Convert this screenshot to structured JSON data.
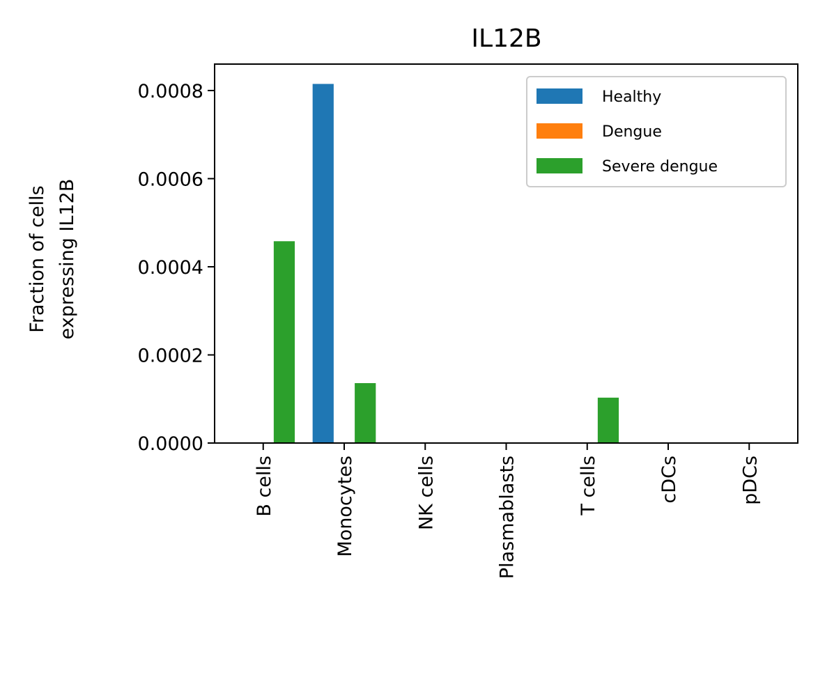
{
  "chart_data": {
    "type": "bar",
    "title": "IL12B",
    "ylabel_lines": [
      "Fraction of cells",
      "expressing IL12B"
    ],
    "xlabel": "",
    "categories": [
      "B cells",
      "Monocytes",
      "NK cells",
      "Plasmablasts",
      "T cells",
      "cDCs",
      "pDCs"
    ],
    "series": [
      {
        "name": "Healthy",
        "color": "#1f77b4",
        "values": [
          0,
          0.000815,
          0,
          0,
          0,
          0,
          0
        ]
      },
      {
        "name": "Dengue",
        "color": "#ff7f0e",
        "values": [
          0,
          0,
          0,
          0,
          0,
          0,
          0
        ]
      },
      {
        "name": "Severe dengue",
        "color": "#2ca02c",
        "values": [
          0.000458,
          0.000136,
          0,
          0,
          0.000103,
          0,
          0
        ]
      }
    ],
    "ylim": [
      0,
      0.00086
    ],
    "yticks": [
      0,
      0.0002,
      0.0004,
      0.0006,
      0.0008
    ],
    "ytick_labels": [
      "0.0000",
      "0.0002",
      "0.0004",
      "0.0006",
      "0.0008"
    ],
    "grid": false,
    "legend_position": "upper right"
  }
}
